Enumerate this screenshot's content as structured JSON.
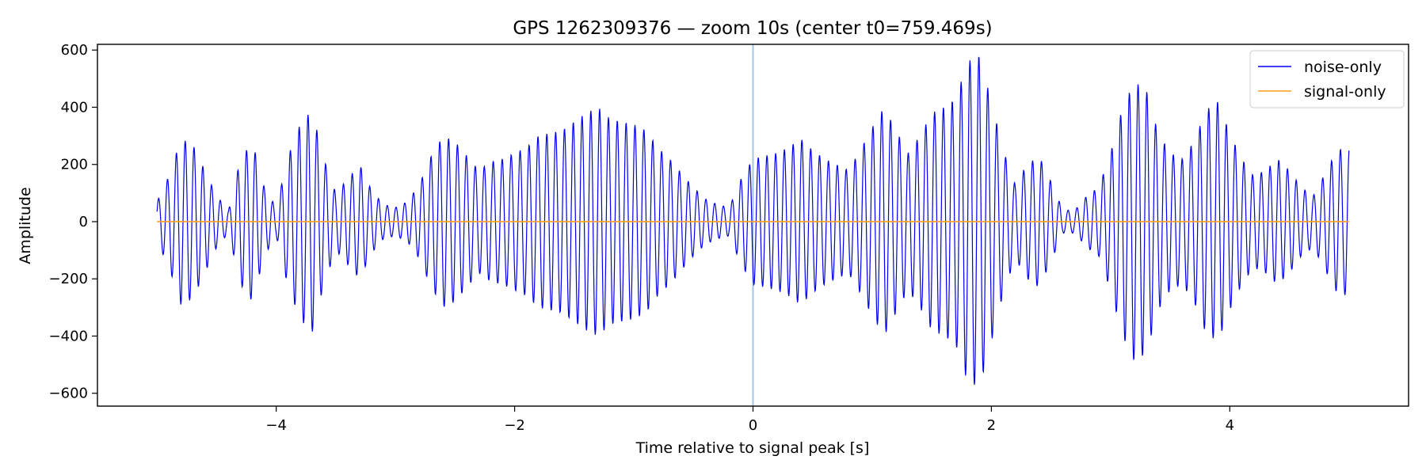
{
  "chart_data": {
    "type": "line",
    "title": "GPS 1262309376 — zoom 10s (center t0=759.469s)",
    "xlabel": "Time relative to signal peak [s]",
    "ylabel": "Amplitude",
    "xlim": [
      -5.5,
      5.5
    ],
    "ylim": [
      -645,
      620
    ],
    "xticks": [
      -4,
      -2,
      0,
      2,
      4
    ],
    "xtick_labels": [
      "−4",
      "−2",
      "0",
      "2",
      "4"
    ],
    "yticks": [
      -600,
      -400,
      -200,
      0,
      200,
      400,
      600
    ],
    "ytick_labels": [
      "−600",
      "−400",
      "−200",
      "0",
      "200",
      "400",
      "600"
    ],
    "grid": false,
    "legend_position": "top-right",
    "vline": {
      "x": 0,
      "color": "#9ec7e6"
    },
    "series": [
      {
        "name": "noise-only",
        "color": "#0000ee",
        "x": [
          -5.0,
          -4.9,
          -4.8,
          -4.7,
          -4.6,
          -4.5,
          -4.4,
          -4.3,
          -4.2,
          -4.1,
          -4.0,
          -3.9,
          -3.8,
          -3.7,
          -3.6,
          -3.5,
          -3.4,
          -3.3,
          -3.2,
          -3.1,
          -3.0,
          -2.9,
          -2.8,
          -2.7,
          -2.6,
          -2.5,
          -2.4,
          -2.3,
          -2.2,
          -2.1,
          -2.0,
          -1.9,
          -1.8,
          -1.7,
          -1.6,
          -1.5,
          -1.4,
          -1.3,
          -1.2,
          -1.1,
          -1.0,
          -0.9,
          -0.8,
          -0.7,
          -0.6,
          -0.5,
          -0.4,
          -0.3,
          -0.2,
          -0.1,
          0.0,
          0.1,
          0.2,
          0.3,
          0.4,
          0.5,
          0.6,
          0.7,
          0.8,
          0.9,
          1.0,
          1.1,
          1.2,
          1.3,
          1.4,
          1.5,
          1.6,
          1.7,
          1.8,
          1.9,
          2.0,
          2.1,
          2.2,
          2.3,
          2.4,
          2.5,
          2.6,
          2.7,
          2.8,
          2.9,
          3.0,
          3.1,
          3.2,
          3.3,
          3.4,
          3.5,
          3.6,
          3.7,
          3.8,
          3.9,
          4.0,
          4.1,
          4.2,
          4.3,
          4.4,
          4.5,
          4.6,
          4.7,
          4.8,
          4.9,
          5.0
        ],
        "envelope": [
          70,
          160,
          290,
          270,
          180,
          90,
          40,
          220,
          280,
          120,
          50,
          230,
          340,
          390,
          220,
          100,
          150,
          200,
          110,
          60,
          50,
          70,
          130,
          230,
          300,
          280,
          230,
          180,
          210,
          220,
          240,
          260,
          300,
          310,
          320,
          350,
          380,
          400,
          360,
          350,
          340,
          320,
          260,
          220,
          170,
          120,
          80,
          60,
          50,
          150,
          220,
          230,
          240,
          260,
          290,
          250,
          220,
          200,
          180,
          250,
          330,
          400,
          320,
          240,
          300,
          380,
          400,
          430,
          560,
          580,
          420,
          250,
          130,
          200,
          230,
          140,
          40,
          40,
          90,
          120,
          240,
          400,
          490,
          460,
          310,
          240,
          220,
          280,
          390,
          420,
          310,
          220,
          160,
          180,
          220,
          180,
          120,
          90,
          170,
          250,
          260
        ],
        "carrier_hz": 13.5,
        "line_width": 1.2
      },
      {
        "name": "signal-only",
        "color": "#ff9f1a",
        "x": [
          -5.0,
          5.0
        ],
        "values": [
          0,
          0
        ],
        "line_width": 1.2
      }
    ]
  }
}
